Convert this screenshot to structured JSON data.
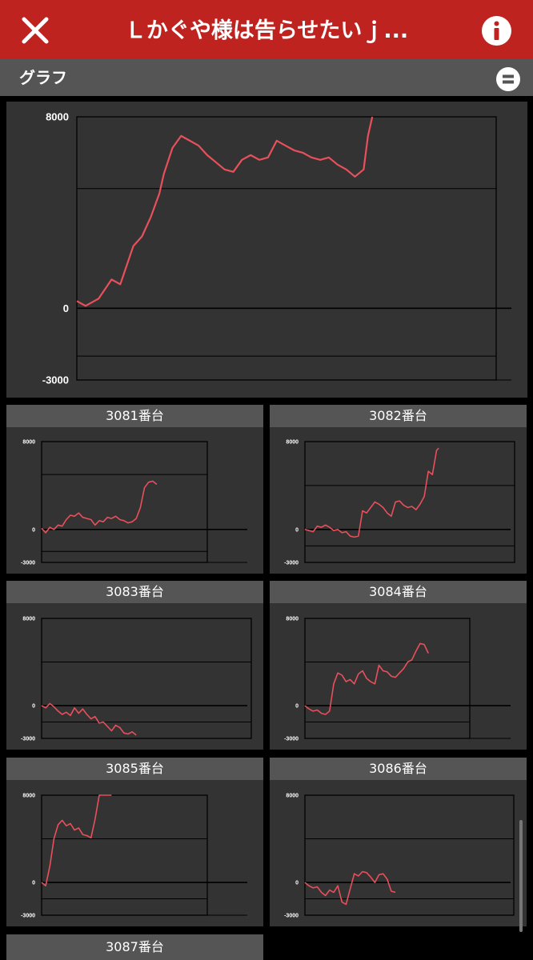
{
  "header": {
    "title": "Ｌかぐや様は告らせたいｊ...",
    "close_icon": "close-icon",
    "info_icon": "info-icon"
  },
  "subheader": {
    "label": "グラフ",
    "menu_icon": "list-toggle-icon"
  },
  "colors": {
    "header_bg": "#bf2320",
    "line": "#e8505b",
    "panel": "#333333",
    "bar": "#555555"
  },
  "chart_data": [
    {
      "type": "line",
      "title": "",
      "ylim": [
        -3000,
        8000
      ],
      "yticks": [
        "8000",
        "0",
        "-3000"
      ],
      "gridlines": [
        5000,
        0,
        -2000
      ],
      "x_extent": 100,
      "points": [
        [
          0,
          300
        ],
        [
          2,
          100
        ],
        [
          5,
          400
        ],
        [
          8,
          1200
        ],
        [
          10,
          1000
        ],
        [
          13,
          2600
        ],
        [
          15,
          3000
        ],
        [
          17,
          3800
        ],
        [
          19,
          4800
        ],
        [
          20,
          5600
        ],
        [
          22,
          6700
        ],
        [
          24,
          7200
        ],
        [
          26,
          7000
        ],
        [
          28,
          6800
        ],
        [
          30,
          6400
        ],
        [
          32,
          6100
        ],
        [
          34,
          5800
        ],
        [
          36,
          5700
        ],
        [
          38,
          6200
        ],
        [
          40,
          6400
        ],
        [
          42,
          6200
        ],
        [
          44,
          6300
        ],
        [
          46,
          7000
        ],
        [
          48,
          6800
        ],
        [
          50,
          6600
        ],
        [
          52,
          6500
        ],
        [
          54,
          6300
        ],
        [
          56,
          6200
        ],
        [
          58,
          6300
        ],
        [
          60,
          6000
        ],
        [
          62,
          5800
        ],
        [
          64,
          5500
        ],
        [
          66,
          5800
        ],
        [
          67,
          7200
        ],
        [
          68,
          8100
        ]
      ]
    },
    {
      "type": "line",
      "title": "3081番台",
      "ylim": [
        -3000,
        8000
      ],
      "yticks": [
        "8000",
        "0",
        "-3000"
      ],
      "gridlines": [
        5000,
        0,
        -2000
      ],
      "x_extent": 100,
      "points": [
        [
          0,
          100
        ],
        [
          2,
          -300
        ],
        [
          4,
          200
        ],
        [
          6,
          0
        ],
        [
          8,
          400
        ],
        [
          10,
          300
        ],
        [
          12,
          900
        ],
        [
          14,
          1300
        ],
        [
          16,
          1200
        ],
        [
          18,
          1500
        ],
        [
          20,
          1100
        ],
        [
          22,
          1000
        ],
        [
          24,
          900
        ],
        [
          26,
          400
        ],
        [
          28,
          800
        ],
        [
          30,
          700
        ],
        [
          32,
          1100
        ],
        [
          34,
          1000
        ],
        [
          36,
          1200
        ],
        [
          38,
          900
        ],
        [
          40,
          800
        ],
        [
          42,
          600
        ],
        [
          44,
          700
        ],
        [
          46,
          1000
        ],
        [
          48,
          2000
        ],
        [
          50,
          3800
        ],
        [
          52,
          4300
        ],
        [
          54,
          4400
        ],
        [
          56,
          4100
        ]
      ]
    },
    {
      "type": "line",
      "title": "3082番台",
      "ylim": [
        -3000,
        8000
      ],
      "yticks": [
        "8000",
        "0",
        "-3000"
      ],
      "gridlines": [
        4000,
        0,
        -1500
      ],
      "x_extent": 100,
      "points": [
        [
          0,
          0
        ],
        [
          2,
          -100
        ],
        [
          4,
          -200
        ],
        [
          6,
          300
        ],
        [
          8,
          200
        ],
        [
          10,
          400
        ],
        [
          12,
          200
        ],
        [
          14,
          -100
        ],
        [
          16,
          0
        ],
        [
          18,
          -300
        ],
        [
          20,
          -200
        ],
        [
          22,
          -600
        ],
        [
          24,
          -700
        ],
        [
          26,
          -600
        ],
        [
          28,
          1700
        ],
        [
          30,
          1500
        ],
        [
          32,
          2000
        ],
        [
          34,
          2500
        ],
        [
          36,
          2300
        ],
        [
          38,
          2000
        ],
        [
          40,
          1500
        ],
        [
          42,
          1200
        ],
        [
          44,
          2500
        ],
        [
          46,
          2600
        ],
        [
          48,
          2200
        ],
        [
          50,
          2000
        ],
        [
          52,
          2100
        ],
        [
          54,
          1800
        ],
        [
          56,
          2300
        ],
        [
          58,
          3000
        ],
        [
          60,
          5300
        ],
        [
          62,
          5000
        ],
        [
          64,
          7200
        ],
        [
          65,
          7400
        ]
      ]
    },
    {
      "type": "line",
      "title": "3083番台",
      "ylim": [
        -3000,
        8000
      ],
      "yticks": [
        "8000",
        "0",
        "-3000"
      ],
      "gridlines": [
        4000,
        0,
        -1500
      ],
      "x_extent": 100,
      "points": [
        [
          0,
          0
        ],
        [
          2,
          -200
        ],
        [
          4,
          200
        ],
        [
          6,
          -100
        ],
        [
          8,
          -500
        ],
        [
          10,
          -800
        ],
        [
          12,
          -600
        ],
        [
          14,
          -900
        ],
        [
          16,
          -200
        ],
        [
          18,
          -700
        ],
        [
          20,
          -300
        ],
        [
          22,
          -800
        ],
        [
          24,
          -1200
        ],
        [
          26,
          -1000
        ],
        [
          28,
          -1600
        ],
        [
          30,
          -1500
        ],
        [
          32,
          -1900
        ],
        [
          34,
          -2300
        ],
        [
          36,
          -1800
        ],
        [
          38,
          -2000
        ],
        [
          40,
          -2500
        ],
        [
          42,
          -2600
        ],
        [
          44,
          -2400
        ],
        [
          46,
          -2700
        ]
      ]
    },
    {
      "type": "line",
      "title": "3084番台",
      "ylim": [
        -3000,
        8000
      ],
      "yticks": [
        "8000",
        "0",
        "-3000"
      ],
      "gridlines": [
        4000,
        0,
        -1500
      ],
      "x_extent": 100,
      "points": [
        [
          0,
          0
        ],
        [
          2,
          -300
        ],
        [
          4,
          -500
        ],
        [
          6,
          -400
        ],
        [
          8,
          -700
        ],
        [
          10,
          -800
        ],
        [
          12,
          -500
        ],
        [
          14,
          2000
        ],
        [
          16,
          3000
        ],
        [
          18,
          2800
        ],
        [
          20,
          2200
        ],
        [
          22,
          2400
        ],
        [
          24,
          2000
        ],
        [
          26,
          2900
        ],
        [
          28,
          3200
        ],
        [
          30,
          2500
        ],
        [
          32,
          2200
        ],
        [
          34,
          2000
        ],
        [
          36,
          3700
        ],
        [
          38,
          3200
        ],
        [
          40,
          3100
        ],
        [
          42,
          2700
        ],
        [
          44,
          2600
        ],
        [
          46,
          3000
        ],
        [
          48,
          3400
        ],
        [
          50,
          4000
        ],
        [
          52,
          4200
        ],
        [
          54,
          5000
        ],
        [
          56,
          5700
        ],
        [
          58,
          5600
        ],
        [
          60,
          4800
        ]
      ]
    },
    {
      "type": "line",
      "title": "3085番台",
      "ylim": [
        -3000,
        8000
      ],
      "yticks": [
        "8000",
        "0",
        "-3000"
      ],
      "gridlines": [
        4000,
        0,
        -1500
      ],
      "x_extent": 100,
      "points": [
        [
          0,
          0
        ],
        [
          2,
          -300
        ],
        [
          4,
          1500
        ],
        [
          6,
          4000
        ],
        [
          8,
          5300
        ],
        [
          10,
          5700
        ],
        [
          12,
          5200
        ],
        [
          14,
          5400
        ],
        [
          16,
          4800
        ],
        [
          18,
          5000
        ],
        [
          20,
          4400
        ],
        [
          22,
          4300
        ],
        [
          24,
          4100
        ],
        [
          26,
          5800
        ],
        [
          28,
          8000
        ],
        [
          30,
          8200
        ],
        [
          32,
          8000
        ],
        [
          34,
          8100
        ]
      ]
    },
    {
      "type": "line",
      "title": "3086番台",
      "ylim": [
        -3000,
        8000
      ],
      "yticks": [
        "8000",
        "0",
        "-3000"
      ],
      "gridlines": [
        4000,
        0,
        -1500
      ],
      "x_extent": 100,
      "points": [
        [
          0,
          0
        ],
        [
          2,
          -300
        ],
        [
          4,
          -500
        ],
        [
          6,
          -400
        ],
        [
          8,
          -900
        ],
        [
          10,
          -1200
        ],
        [
          12,
          -700
        ],
        [
          14,
          -900
        ],
        [
          16,
          -300
        ],
        [
          18,
          -1800
        ],
        [
          20,
          -2000
        ],
        [
          22,
          -600
        ],
        [
          24,
          800
        ],
        [
          26,
          600
        ],
        [
          28,
          1000
        ],
        [
          30,
          900
        ],
        [
          32,
          500
        ],
        [
          34,
          0
        ],
        [
          36,
          700
        ],
        [
          38,
          800
        ],
        [
          40,
          300
        ],
        [
          42,
          -800
        ],
        [
          44,
          -900
        ]
      ]
    }
  ],
  "cards": [
    {
      "title": "3081番台"
    },
    {
      "title": "3082番台"
    },
    {
      "title": "3083番台"
    },
    {
      "title": "3084番台"
    },
    {
      "title": "3085番台"
    },
    {
      "title": "3086番台"
    },
    {
      "title": "3087番台"
    }
  ]
}
